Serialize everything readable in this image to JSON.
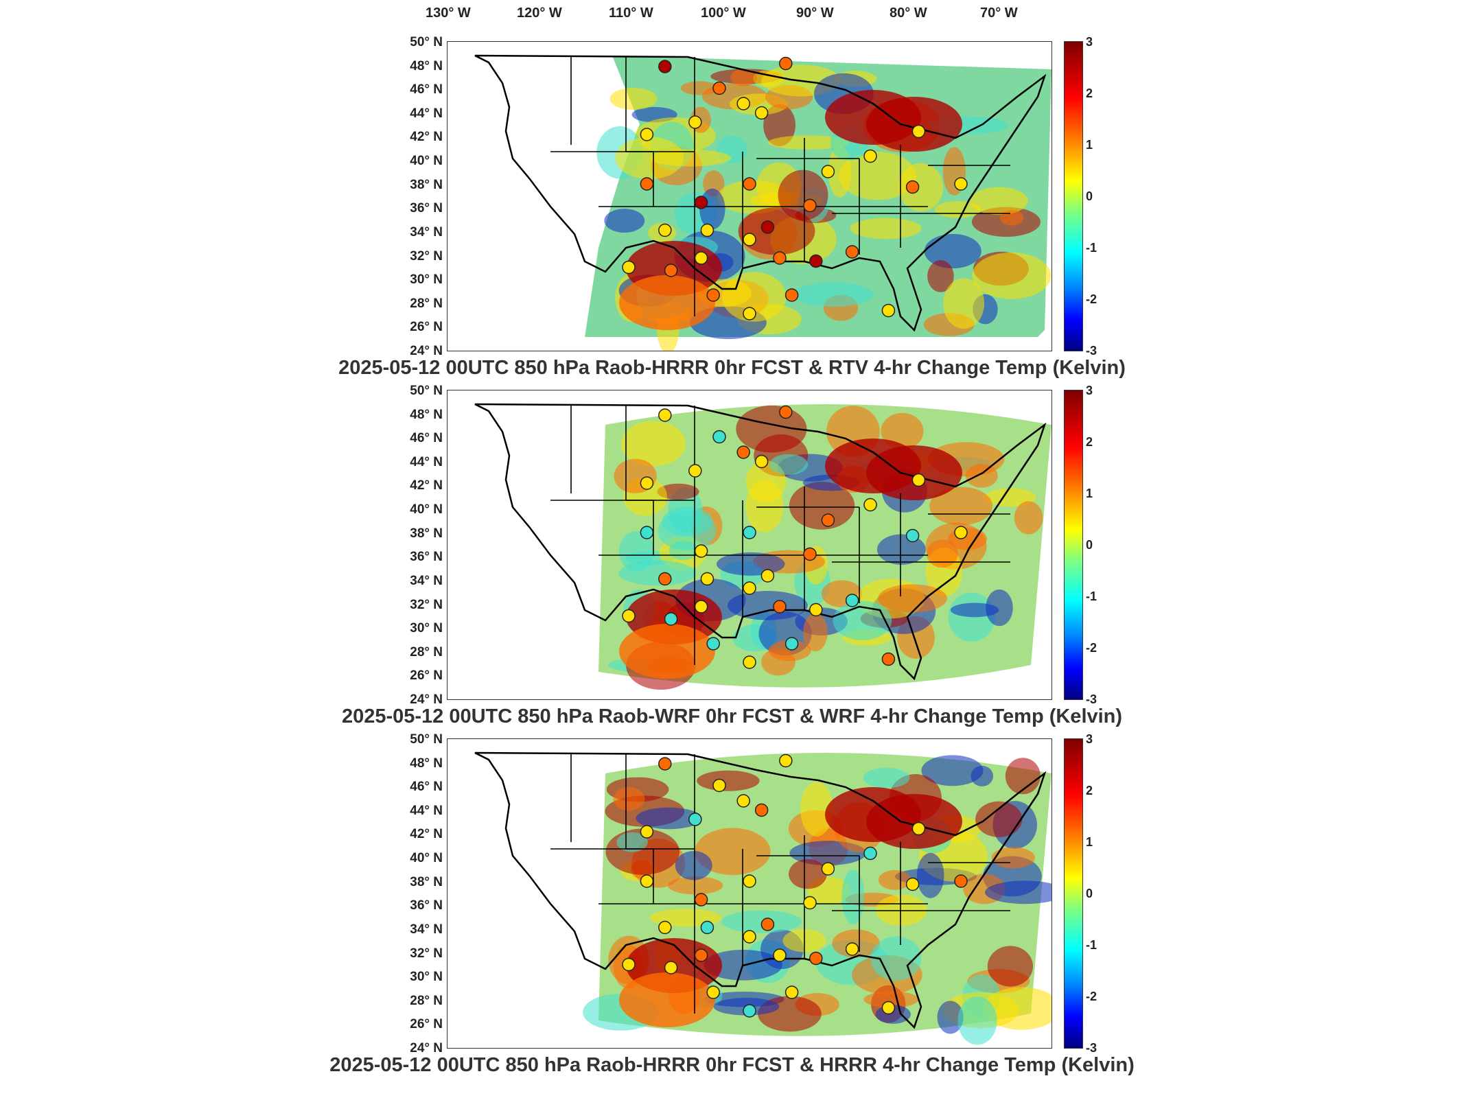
{
  "lon_labels": [
    "130° W",
    "120° W",
    "110° W",
    "100° W",
    "90° W",
    "80° W",
    "70° W"
  ],
  "lat_labels": [
    "50° N",
    "48° N",
    "46° N",
    "44° N",
    "42° N",
    "40° N",
    "38° N",
    "36° N",
    "34° N",
    "32° N",
    "30° N",
    "28° N",
    "26° N",
    "24° N"
  ],
  "colorbar_ticks": [
    "3",
    "2",
    "1",
    "0",
    "-1",
    "-2",
    "-3"
  ],
  "colorbar_range": [
    -3,
    3
  ],
  "panels": [
    {
      "title": "2025-05-12 00UTC 850 hPa Raob-HRRR 0hr FCST & RTV 4-hr Change Temp (Kelvin)"
    },
    {
      "title": "2025-05-12 00UTC 850 hPa Raob-WRF 0hr FCST & WRF 4-hr Change Temp (Kelvin)"
    },
    {
      "title": "2025-05-12 00UTC 850 hPa Raob-HRRR 0hr FCST & HRRR 4-hr Change Temp (Kelvin)"
    }
  ],
  "colors": {
    "hot": "#b00000",
    "warm": "#ff6a00",
    "neutral": "#ffe000",
    "cool": "#40e0d0",
    "cold": "#1030c0",
    "outline": "#000000"
  }
}
